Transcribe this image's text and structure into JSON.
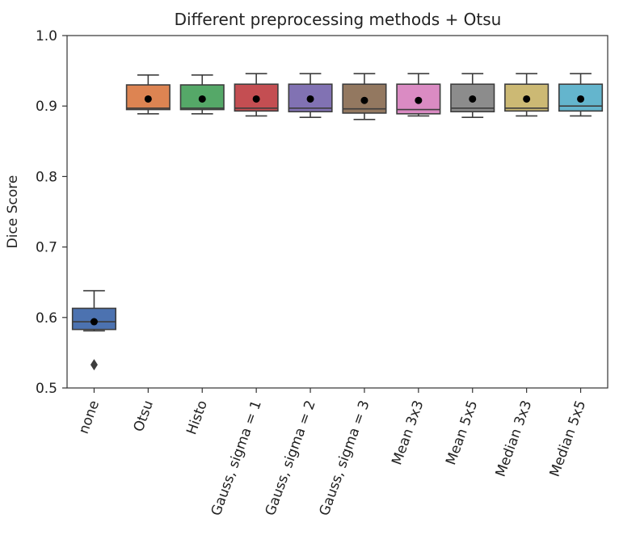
{
  "chart_data": {
    "type": "box",
    "title": "Different preprocessing methods + Otsu",
    "xlabel": "",
    "ylabel": "Dice Score",
    "ylim": [
      0.5,
      1.0
    ],
    "yticks": [
      "0.5",
      "0.6",
      "0.7",
      "0.8",
      "0.9",
      "1.0"
    ],
    "grid": false,
    "categories": [
      "none",
      "Otsu",
      "Histo",
      "Gauss, sigma = 1",
      "Gauss, sigma = 2",
      "Gauss, sigma = 3",
      "Mean 3x3",
      "Mean 5x5",
      "Median 3x3",
      "Median 5x5"
    ],
    "series": [
      {
        "category": "none",
        "whisker_low": 0.581,
        "q1": 0.583,
        "median": 0.594,
        "q3": 0.613,
        "whisker_high": 0.638,
        "mean": 0.594,
        "outliers": [
          0.533
        ],
        "color": "#4C72B0"
      },
      {
        "category": "Otsu",
        "whisker_low": 0.889,
        "q1": 0.895,
        "median": 0.897,
        "q3": 0.93,
        "whisker_high": 0.944,
        "mean": 0.91,
        "outliers": [],
        "color": "#DD8452"
      },
      {
        "category": "Histo",
        "whisker_low": 0.889,
        "q1": 0.895,
        "median": 0.897,
        "q3": 0.93,
        "whisker_high": 0.944,
        "mean": 0.91,
        "outliers": [],
        "color": "#55A868"
      },
      {
        "category": "Gauss, sigma = 1",
        "whisker_low": 0.886,
        "q1": 0.893,
        "median": 0.897,
        "q3": 0.931,
        "whisker_high": 0.946,
        "mean": 0.91,
        "outliers": [],
        "color": "#C44E52"
      },
      {
        "category": "Gauss, sigma = 2",
        "whisker_low": 0.884,
        "q1": 0.892,
        "median": 0.897,
        "q3": 0.931,
        "whisker_high": 0.946,
        "mean": 0.91,
        "outliers": [],
        "color": "#8172B3"
      },
      {
        "category": "Gauss, sigma = 3",
        "whisker_low": 0.881,
        "q1": 0.89,
        "median": 0.896,
        "q3": 0.931,
        "whisker_high": 0.946,
        "mean": 0.908,
        "outliers": [],
        "color": "#937860"
      },
      {
        "category": "Mean 3x3",
        "whisker_low": 0.886,
        "q1": 0.889,
        "median": 0.895,
        "q3": 0.931,
        "whisker_high": 0.946,
        "mean": 0.908,
        "outliers": [],
        "color": "#DA8BC3"
      },
      {
        "category": "Mean 5x5",
        "whisker_low": 0.884,
        "q1": 0.892,
        "median": 0.897,
        "q3": 0.931,
        "whisker_high": 0.946,
        "mean": 0.91,
        "outliers": [],
        "color": "#8C8C8C"
      },
      {
        "category": "Median 3x3",
        "whisker_low": 0.886,
        "q1": 0.893,
        "median": 0.897,
        "q3": 0.931,
        "whisker_high": 0.946,
        "mean": 0.91,
        "outliers": [],
        "color": "#CCB974"
      },
      {
        "category": "Median 5x5",
        "whisker_low": 0.886,
        "q1": 0.893,
        "median": 0.9,
        "q3": 0.931,
        "whisker_high": 0.946,
        "mean": 0.91,
        "outliers": [],
        "color": "#64B5CD"
      }
    ]
  }
}
